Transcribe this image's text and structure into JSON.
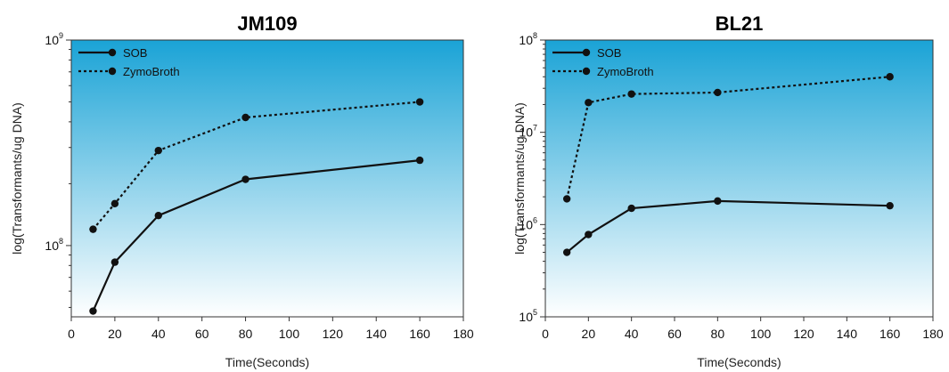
{
  "chart_data": [
    {
      "type": "line",
      "title": "JM109",
      "xlabel": "Time(Seconds)",
      "ylabel": "log(Transformants/ug DNA)",
      "xlim": [
        0,
        180
      ],
      "xticks": [
        0,
        20,
        40,
        60,
        80,
        100,
        120,
        140,
        160,
        180
      ],
      "ylim": [
        45000000,
        1000000000
      ],
      "yscale": "log",
      "yticks": [
        {
          "value": 100000000,
          "base": "10",
          "exp": "8"
        },
        {
          "value": 1000000000,
          "base": "10",
          "exp": "9"
        }
      ],
      "legend_position": "top-left",
      "background": [
        "#1aa3d6",
        "#ffffff"
      ],
      "series": [
        {
          "name": "SOB",
          "style": "solid",
          "x": [
            10,
            20,
            40,
            80,
            160
          ],
          "values": [
            48000000,
            83000000,
            140000000,
            210000000,
            260000000
          ]
        },
        {
          "name": "ZymoBroth",
          "style": "dotted",
          "x": [
            10,
            20,
            40,
            80,
            160
          ],
          "values": [
            120000000,
            160000000,
            290000000,
            420000000,
            500000000
          ]
        }
      ]
    },
    {
      "type": "line",
      "title": "BL21",
      "xlabel": "Time(Seconds)",
      "ylabel": "log(Transformants/ug DNA)",
      "xlim": [
        0,
        180
      ],
      "xticks": [
        0,
        20,
        40,
        60,
        80,
        100,
        120,
        140,
        160,
        180
      ],
      "ylim": [
        100000,
        100000000
      ],
      "yscale": "log",
      "yticks": [
        {
          "value": 100000,
          "base": "10",
          "exp": "5"
        },
        {
          "value": 1000000,
          "base": "10",
          "exp": "6"
        },
        {
          "value": 10000000,
          "base": "10",
          "exp": "7"
        },
        {
          "value": 100000000,
          "base": "10",
          "exp": "8"
        }
      ],
      "legend_position": "top-left",
      "background": [
        "#1aa3d6",
        "#ffffff"
      ],
      "series": [
        {
          "name": "SOB",
          "style": "solid",
          "x": [
            10,
            20,
            40,
            80,
            160
          ],
          "values": [
            500000,
            780000,
            1500000,
            1800000,
            1600000
          ]
        },
        {
          "name": "ZymoBroth",
          "style": "dotted",
          "x": [
            10,
            20,
            40,
            80,
            160
          ],
          "values": [
            1900000,
            21000000,
            26000000,
            27000000,
            40000000
          ]
        }
      ]
    }
  ]
}
